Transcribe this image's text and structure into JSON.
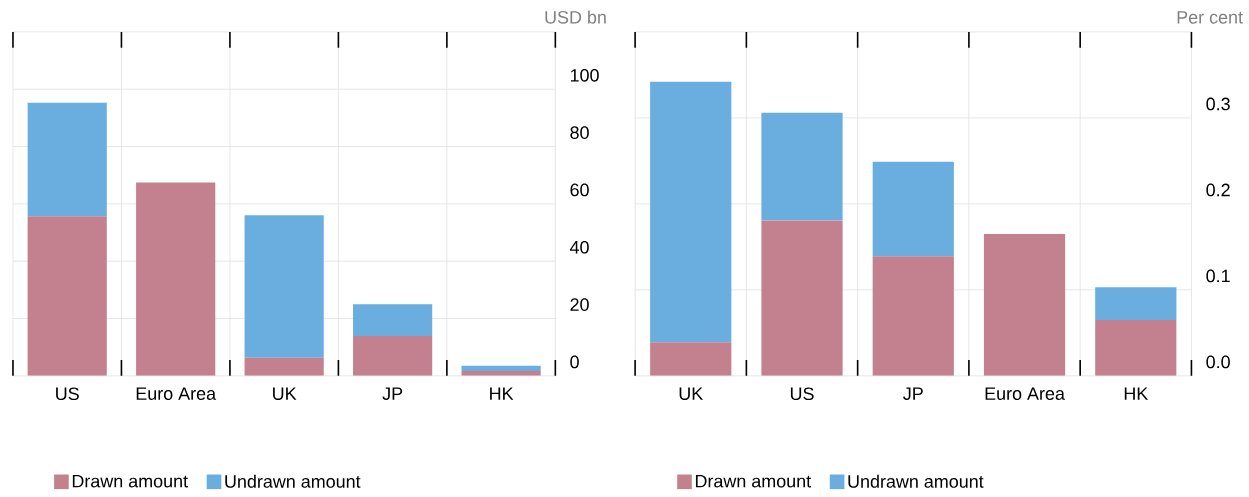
{
  "chart_data": [
    {
      "type": "bar",
      "stacked": true,
      "ylabel": "USD bn",
      "categories": [
        "US",
        "Euro Area",
        "UK",
        "JP",
        "HK"
      ],
      "series": [
        {
          "name": "Drawn amount",
          "color": "#c3818f",
          "values": [
            55.7,
            67.5,
            6.3,
            13.9,
            1.7
          ]
        },
        {
          "name": "Undrawn amount",
          "color": "#6aaee0",
          "values": [
            39.6,
            null,
            49.7,
            11.1,
            1.8
          ]
        }
      ],
      "ylim": [
        0,
        120
      ],
      "yticks": [
        0,
        20,
        40,
        60,
        80,
        100,
        {
          "value": 120,
          "label": null
        }
      ],
      "grid": true,
      "legend": "bottom"
    },
    {
      "type": "bar",
      "stacked": true,
      "ylabel": "Per cent",
      "categories": [
        "UK",
        "US",
        "JP",
        "Euro Area",
        "HK"
      ],
      "series": [
        {
          "name": "Drawn amount",
          "color": "#c3818f",
          "values": [
            0.039,
            0.181,
            0.139,
            0.165,
            0.065
          ]
        },
        {
          "name": "Undrawn amount",
          "color": "#6aaee0",
          "values": [
            0.303,
            0.125,
            0.11,
            null,
            0.038
          ]
        }
      ],
      "ylim": [
        0,
        0.4
      ],
      "yticks": [
        {
          "value": 0,
          "label": "0.0"
        },
        0.1,
        0.2,
        0.3,
        {
          "value": 0.4,
          "label": null
        }
      ],
      "grid": true,
      "legend": "bottom"
    }
  ]
}
